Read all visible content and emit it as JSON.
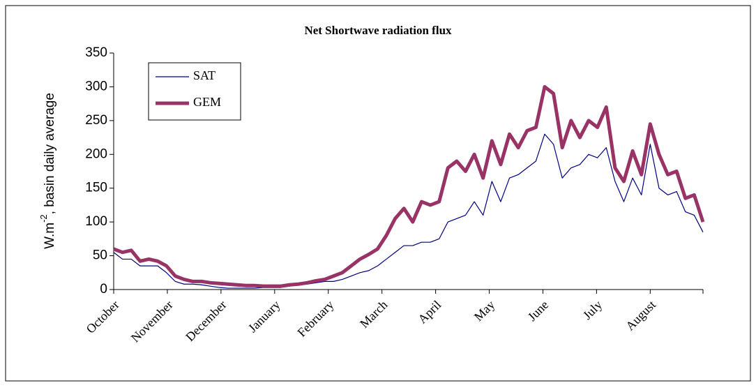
{
  "chart_data": {
    "type": "line",
    "title": "Net Shortwave radiation flux",
    "ylabel": {
      "pre": "W.m",
      "sup": "-2",
      "post": ", basin daily average"
    },
    "x": [
      0,
      5,
      10,
      15,
      20,
      25,
      30,
      35,
      40,
      45,
      50,
      55,
      60,
      65,
      70,
      75,
      80,
      85,
      90,
      95,
      100,
      105,
      110,
      115,
      120,
      125,
      130,
      135,
      140,
      145,
      150,
      155,
      160,
      165,
      170,
      175,
      180,
      185,
      190,
      195,
      200,
      205,
      210,
      215,
      220,
      225,
      230,
      235,
      240,
      245,
      250,
      255,
      260,
      265,
      270,
      275,
      280,
      285,
      290,
      295,
      300,
      305,
      310,
      315,
      320,
      325,
      330,
      335
    ],
    "xlim": [
      0,
      335
    ],
    "xticks": [
      {
        "value": 0,
        "label": "October"
      },
      {
        "value": 30.5,
        "label": "November"
      },
      {
        "value": 61,
        "label": "December"
      },
      {
        "value": 91.5,
        "label": "January"
      },
      {
        "value": 122,
        "label": "February"
      },
      {
        "value": 152.5,
        "label": "March"
      },
      {
        "value": 183,
        "label": "April"
      },
      {
        "value": 213.5,
        "label": "May"
      },
      {
        "value": 244,
        "label": "June"
      },
      {
        "value": 274.5,
        "label": "July"
      },
      {
        "value": 305,
        "label": "August"
      }
    ],
    "ylim": [
      0,
      350
    ],
    "yticks": [
      0,
      50,
      100,
      150,
      200,
      250,
      300,
      350
    ],
    "grid": false,
    "legend": "upper left",
    "series": [
      {
        "name": "SAT",
        "color": "#000080",
        "line_width": 1.2,
        "values": [
          55,
          45,
          45,
          35,
          35,
          35,
          25,
          12,
          8,
          8,
          7,
          5,
          3,
          2,
          2,
          2,
          2,
          3,
          3,
          3,
          5,
          7,
          8,
          10,
          12,
          12,
          15,
          20,
          25,
          28,
          35,
          45,
          55,
          65,
          65,
          70,
          70,
          75,
          100,
          105,
          110,
          130,
          110,
          160,
          130,
          165,
          170,
          180,
          190,
          230,
          215,
          165,
          180,
          185,
          200,
          195,
          210,
          160,
          130,
          165,
          140,
          215,
          150,
          140,
          145,
          115,
          110,
          85
        ]
      },
      {
        "name": "GEM",
        "color": "#993366",
        "line_width": 5,
        "values": [
          60,
          55,
          58,
          42,
          45,
          42,
          35,
          20,
          15,
          12,
          12,
          10,
          9,
          8,
          7,
          6,
          6,
          5,
          5,
          5,
          7,
          8,
          10,
          13,
          15,
          20,
          25,
          35,
          45,
          52,
          60,
          80,
          105,
          120,
          100,
          130,
          125,
          130,
          180,
          190,
          175,
          200,
          165,
          220,
          185,
          230,
          210,
          235,
          240,
          300,
          290,
          210,
          250,
          225,
          250,
          240,
          270,
          180,
          160,
          205,
          170,
          245,
          200,
          170,
          175,
          135,
          140,
          100
        ]
      }
    ]
  }
}
